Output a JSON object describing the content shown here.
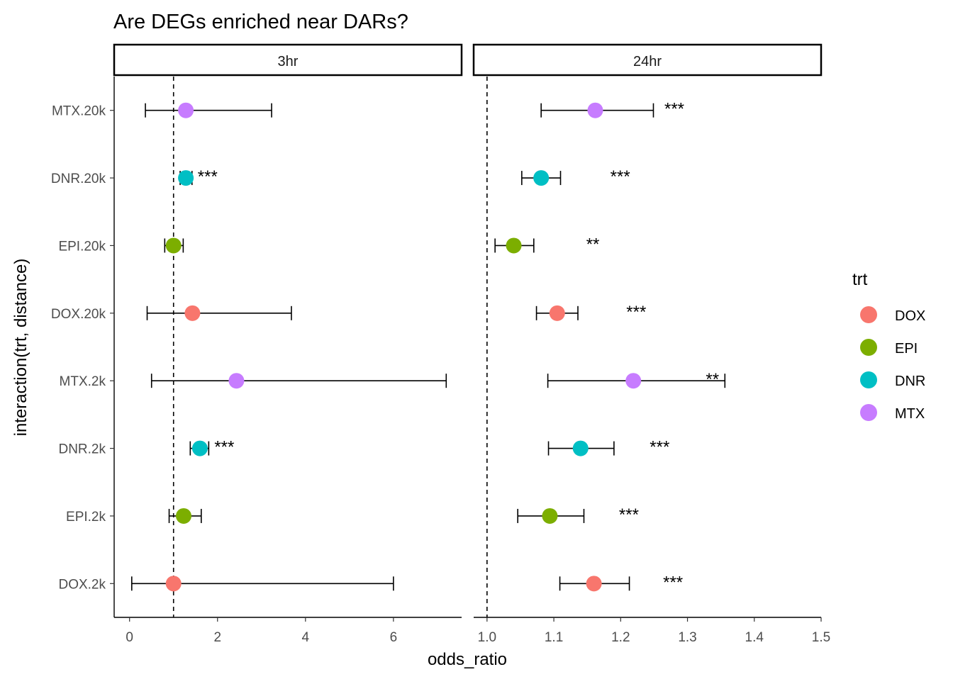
{
  "chart_data": {
    "type": "scatter",
    "title": "Are DEGs enriched near DARs?",
    "xlabel": "odds_ratio",
    "ylabel": "interaction(trt, distance)",
    "categories": [
      "DOX.2k",
      "EPI.2k",
      "DNR.2k",
      "MTX.2k",
      "DOX.20k",
      "EPI.20k",
      "DNR.20k",
      "MTX.20k"
    ],
    "reference_line": 1,
    "legend": {
      "title": "trt",
      "position": "right",
      "entries": [
        {
          "name": "DOX",
          "color": "#F8766D"
        },
        {
          "name": "EPI",
          "color": "#7CAE00"
        },
        {
          "name": "DNR",
          "color": "#00BFC4"
        },
        {
          "name": "MTX",
          "color": "#C77CFF"
        }
      ]
    },
    "panels": [
      {
        "name": "3hr",
        "xlim": [
          -0.35,
          7.55
        ],
        "xticks": [
          0,
          2,
          4,
          6
        ],
        "xtick_labels": [
          "0",
          "2",
          "4",
          "6"
        ],
        "points": [
          {
            "category": "DOX.2k",
            "trt": "DOX",
            "odds_ratio": 1.0,
            "lo": 0.05,
            "hi": 6.0,
            "sig": ""
          },
          {
            "category": "EPI.2k",
            "trt": "EPI",
            "odds_ratio": 1.23,
            "lo": 0.9,
            "hi": 1.63,
            "sig": ""
          },
          {
            "category": "DNR.2k",
            "trt": "DNR",
            "odds_ratio": 1.6,
            "lo": 1.38,
            "hi": 1.8,
            "sig": "***"
          },
          {
            "category": "MTX.2k",
            "trt": "MTX",
            "odds_ratio": 2.43,
            "lo": 0.5,
            "hi": 7.2,
            "sig": ""
          },
          {
            "category": "DOX.20k",
            "trt": "DOX",
            "odds_ratio": 1.43,
            "lo": 0.4,
            "hi": 3.68,
            "sig": ""
          },
          {
            "category": "EPI.20k",
            "trt": "EPI",
            "odds_ratio": 1.0,
            "lo": 0.8,
            "hi": 1.22,
            "sig": ""
          },
          {
            "category": "DNR.20k",
            "trt": "DNR",
            "odds_ratio": 1.28,
            "lo": 1.15,
            "hi": 1.42,
            "sig": "***"
          },
          {
            "category": "MTX.20k",
            "trt": "MTX",
            "odds_ratio": 1.28,
            "lo": 0.36,
            "hi": 3.23,
            "sig": ""
          }
        ]
      },
      {
        "name": "24hr",
        "xlim": [
          0.98,
          1.5
        ],
        "xticks": [
          1.0,
          1.1,
          1.2,
          1.3,
          1.4,
          1.5
        ],
        "xtick_labels": [
          "1.0",
          "1.1",
          "1.2",
          "1.3",
          "1.4",
          "1.5"
        ],
        "points": [
          {
            "category": "DOX.2k",
            "trt": "DOX",
            "odds_ratio": 1.16,
            "lo": 1.109,
            "hi": 1.213,
            "sig": "***"
          },
          {
            "category": "EPI.2k",
            "trt": "EPI",
            "odds_ratio": 1.094,
            "lo": 1.046,
            "hi": 1.145,
            "sig": "***"
          },
          {
            "category": "DNR.2k",
            "trt": "DNR",
            "odds_ratio": 1.14,
            "lo": 1.092,
            "hi": 1.19,
            "sig": "***"
          },
          {
            "category": "MTX.2k",
            "trt": "MTX",
            "odds_ratio": 1.219,
            "lo": 1.091,
            "hi": 1.356,
            "sig": "**"
          },
          {
            "category": "DOX.20k",
            "trt": "DOX",
            "odds_ratio": 1.105,
            "lo": 1.074,
            "hi": 1.136,
            "sig": "***"
          },
          {
            "category": "EPI.20k",
            "trt": "EPI",
            "odds_ratio": 1.04,
            "lo": 1.012,
            "hi": 1.07,
            "sig": "**"
          },
          {
            "category": "DNR.20k",
            "trt": "DNR",
            "odds_ratio": 1.081,
            "lo": 1.052,
            "hi": 1.11,
            "sig": "***"
          },
          {
            "category": "MTX.20k",
            "trt": "MTX",
            "odds_ratio": 1.162,
            "lo": 1.081,
            "hi": 1.249,
            "sig": "***"
          }
        ]
      }
    ]
  }
}
